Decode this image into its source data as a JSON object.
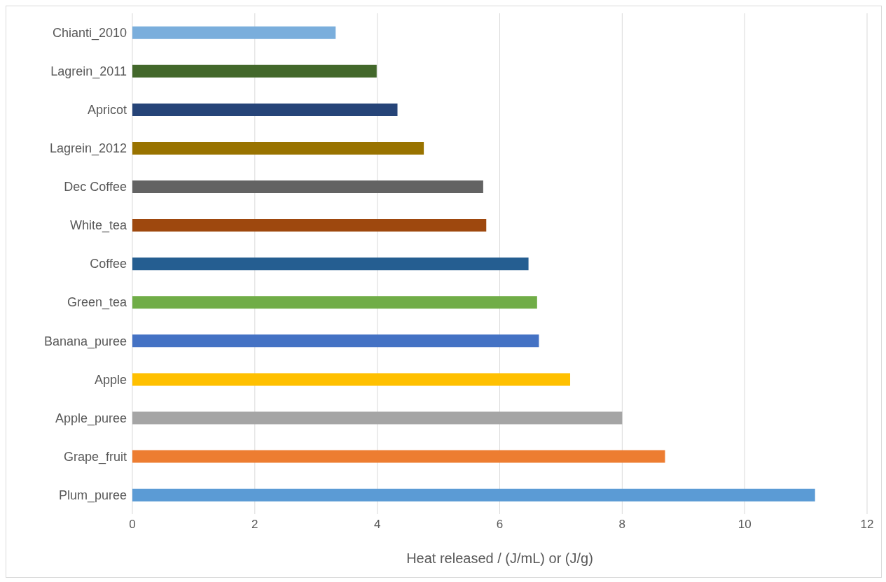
{
  "chart_data": {
    "type": "bar",
    "orientation": "horizontal",
    "xlabel": "Heat released / (J/mL) or (J/g)",
    "categories": [
      "Chianti_2010",
      "Lagrein_2011",
      "Apricot",
      "Lagrein_2012",
      "Dec Coffee",
      "White_tea",
      "Coffee",
      "Green_tea",
      "Banana_puree",
      "Apple",
      "Apple_puree",
      "Grape_fruit",
      "Plum_puree"
    ],
    "values": [
      3.32,
      3.99,
      4.33,
      4.76,
      5.73,
      5.78,
      6.47,
      6.61,
      6.64,
      7.15,
      8.0,
      8.7,
      11.15
    ],
    "colors": [
      "#7aaedc",
      "#43682b",
      "#264478",
      "#997300",
      "#636363",
      "#9e480e",
      "#255e91",
      "#70ad47",
      "#4472c4",
      "#ffc000",
      "#a5a5a5",
      "#ed7d31",
      "#5b9bd5"
    ],
    "xlim": [
      0,
      12
    ],
    "xticks": [
      0,
      2,
      4,
      6,
      8,
      10,
      12
    ],
    "grid": "x"
  }
}
